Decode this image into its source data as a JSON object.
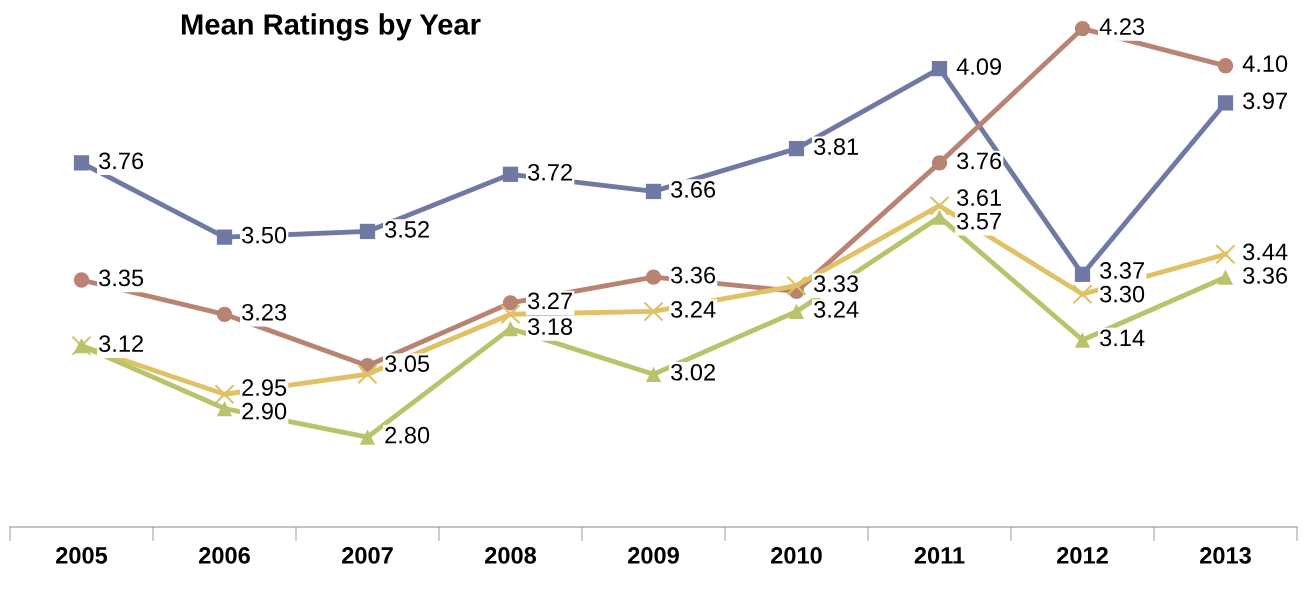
{
  "chart_data": {
    "type": "line",
    "title": "Mean Ratings by Year",
    "categories": [
      "2005",
      "2006",
      "2007",
      "2008",
      "2009",
      "2010",
      "2011",
      "2012",
      "2013"
    ],
    "series": [
      {
        "color": "#7079a4",
        "marker": "square",
        "values": [
          3.76,
          3.5,
          3.52,
          3.72,
          3.66,
          3.81,
          4.09,
          3.37,
          3.97
        ],
        "value_labels": [
          "3.76",
          "3.50",
          "3.52",
          "3.72",
          "3.66",
          "3.81",
          "4.09",
          "3.37",
          "3.97"
        ]
      },
      {
        "color": "#b88372",
        "marker": "circle",
        "values": [
          3.35,
          3.23,
          3.05,
          3.27,
          3.36,
          3.31,
          3.76,
          4.23,
          4.1
        ],
        "value_labels": [
          "3.35",
          "3.23",
          "3.05",
          "3.27",
          "3.36",
          null,
          "3.76",
          "4.23",
          "4.10"
        ]
      },
      {
        "color": "#e0c165",
        "marker": "cross",
        "values": [
          3.12,
          2.95,
          3.02,
          3.23,
          3.24,
          3.33,
          3.61,
          3.3,
          3.44
        ],
        "value_labels": [
          null,
          "2.95",
          null,
          null,
          "3.24",
          "3.33",
          "3.61",
          "3.30",
          "3.44"
        ]
      },
      {
        "color": "#b9c36c",
        "marker": "triangle",
        "values": [
          3.12,
          2.9,
          2.8,
          3.18,
          3.02,
          3.24,
          3.57,
          3.14,
          3.36
        ],
        "value_labels": [
          "3.12",
          "2.90",
          "2.80",
          "3.18",
          "3.02",
          "3.24",
          "3.57",
          "3.14",
          "3.36"
        ]
      }
    ],
    "tick_labels": "x",
    "grid": false,
    "legend": false,
    "line_style": "solid"
  }
}
